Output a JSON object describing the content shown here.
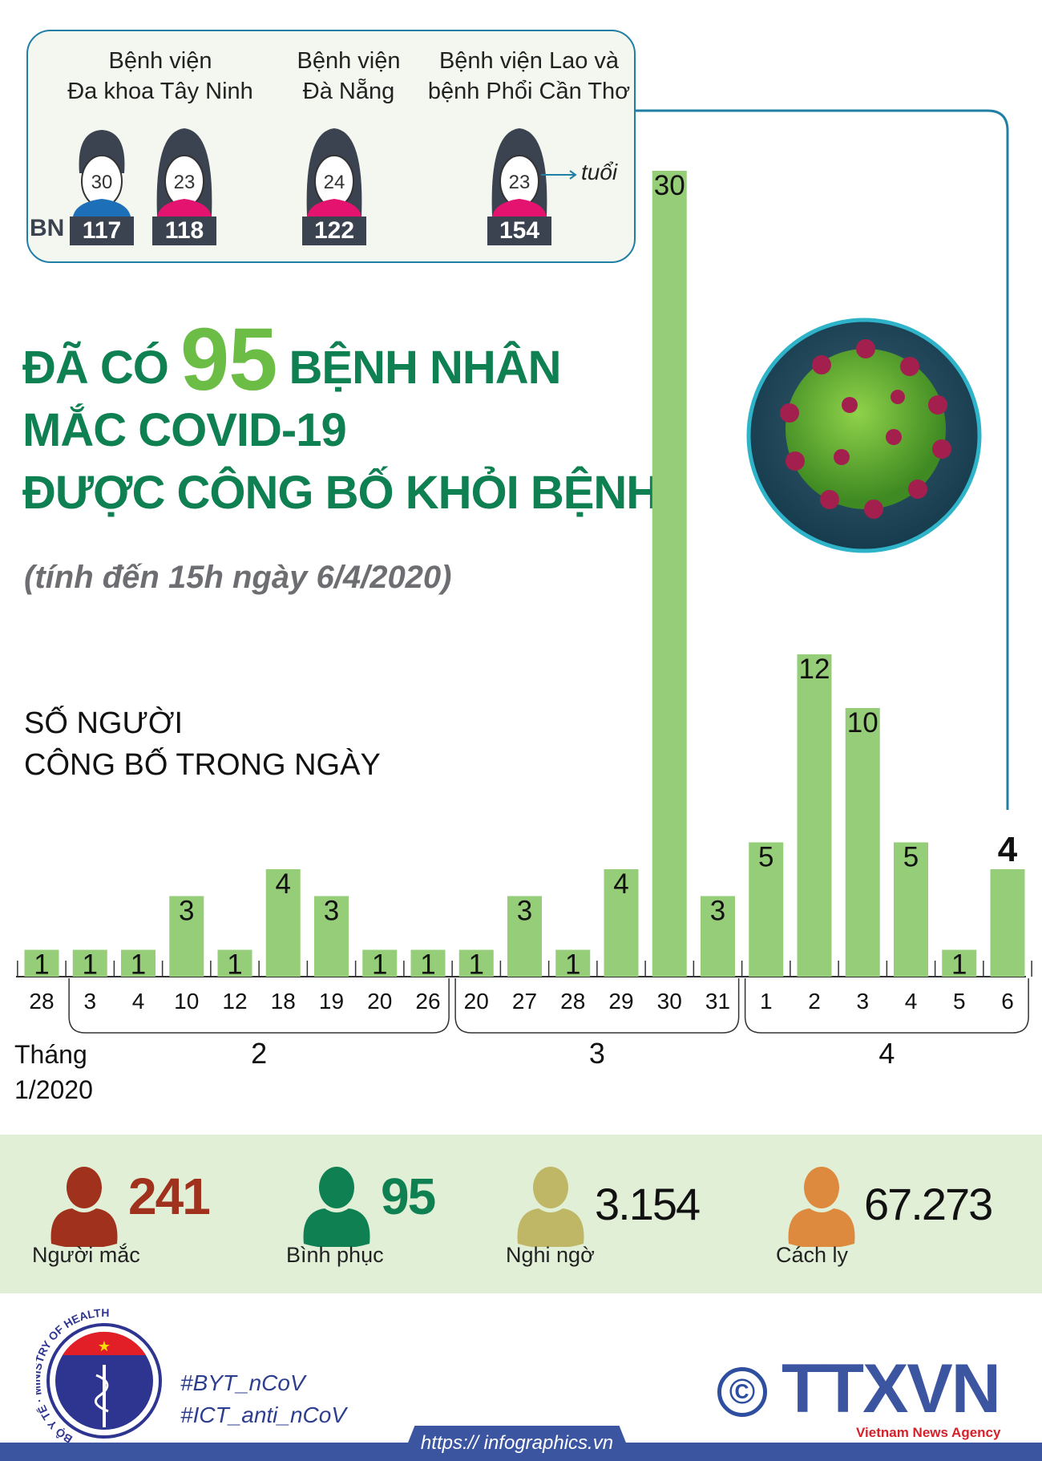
{
  "top_box": {
    "hospitals": [
      {
        "name_line1": "Bệnh viện",
        "name_line2": "Đa khoa Tây Ninh",
        "patients": [
          {
            "id": "117",
            "age": "30",
            "gender": "male"
          },
          {
            "id": "118",
            "age": "23",
            "gender": "female"
          }
        ]
      },
      {
        "name_line1": "Bệnh viện",
        "name_line2": "Đà Nẵng",
        "patients": [
          {
            "id": "122",
            "age": "24",
            "gender": "female"
          }
        ]
      },
      {
        "name_line1": "Bệnh viện Lao và",
        "name_line2": "bệnh Phổi Cần Thơ",
        "patients": [
          {
            "id": "154",
            "age": "23",
            "gender": "female"
          }
        ]
      }
    ],
    "bn_prefix": "BN",
    "age_unit": "tuổi"
  },
  "title": {
    "prefix": "ĐÃ CÓ",
    "number": "95",
    "suffix": "BỆNH NHÂN",
    "line2": "MẮC COVID-19",
    "line3": "ĐƯỢC CÔNG BỐ KHỎI BỆNH"
  },
  "subtitle": "(tính đến 15h ngày 6/4/2020)",
  "chart_data": {
    "type": "bar",
    "ylabel_line1": "SỐ NGƯỜI",
    "ylabel_line2": "CÔNG BỐ TRONG NGÀY",
    "categories": [
      "28",
      "3",
      "4",
      "10",
      "12",
      "18",
      "19",
      "20",
      "26",
      "20",
      "27",
      "28",
      "29",
      "30",
      "31",
      "1",
      "2",
      "3",
      "4",
      "5",
      "6"
    ],
    "values": [
      1,
      1,
      1,
      3,
      1,
      4,
      3,
      1,
      1,
      1,
      3,
      1,
      4,
      30,
      3,
      5,
      12,
      10,
      5,
      1,
      4
    ],
    "months": [
      {
        "label": "Tháng",
        "label2": "1/2020",
        "from": 0,
        "to": 0
      },
      {
        "label": "2",
        "from": 1,
        "to": 8
      },
      {
        "label": "3",
        "from": 9,
        "to": 14
      },
      {
        "label": "4",
        "from": 15,
        "to": 20
      }
    ],
    "bar_color": "#96cd78",
    "grid": false
  },
  "stats": [
    {
      "value": "241",
      "label": "Người mắc",
      "color": "#a0311d"
    },
    {
      "value": "95",
      "label": "Bình phục",
      "color": "#0e8051"
    },
    {
      "value": "3.154",
      "label": "Nghi ngờ",
      "color": "#bfb765"
    },
    {
      "value": "67.273",
      "label": "Cách ly",
      "color": "#de8a3e"
    }
  ],
  "footer": {
    "ministry_logo_text": "BỘ Y TẾ · MINISTRY OF HEALTH",
    "hashtags": [
      "#BYT_nCoV",
      "#ICT_anti_nCoV"
    ],
    "url": "https:// infographics.vn",
    "agency_logo": "TTXVN",
    "agency_tagline": "Vietnam News Agency",
    "copyright": "©"
  }
}
